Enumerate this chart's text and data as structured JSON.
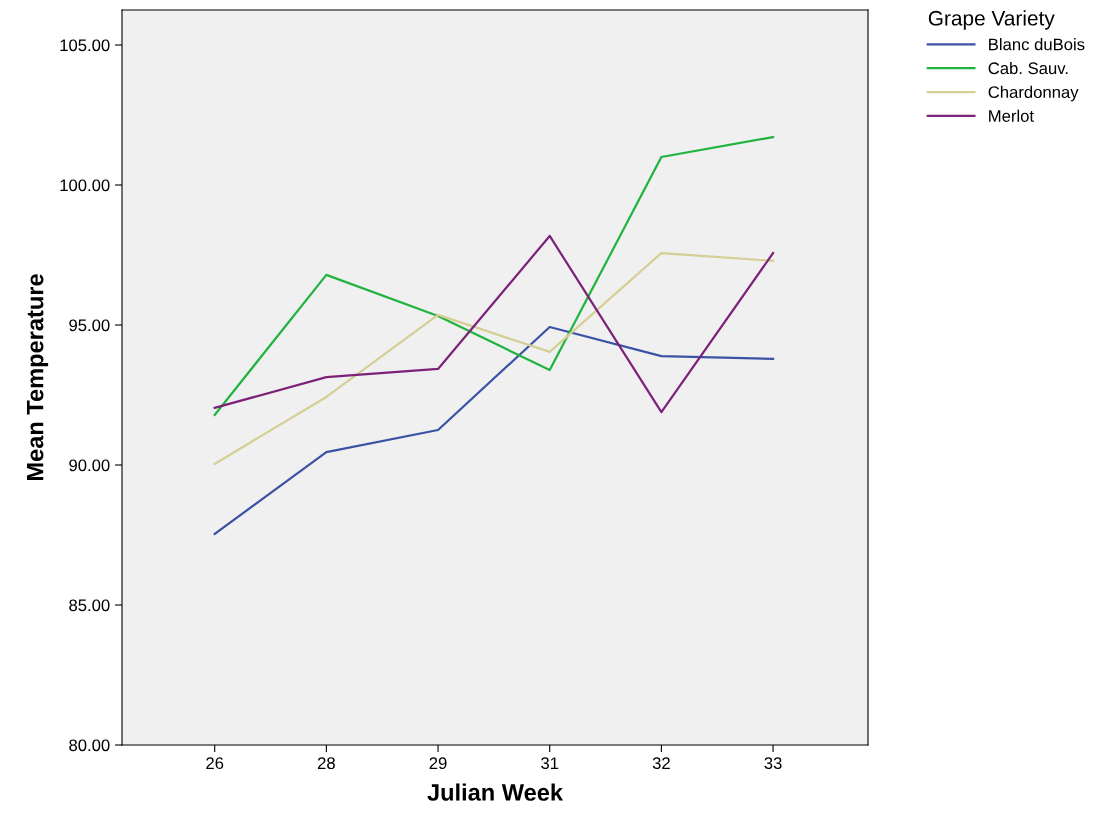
{
  "chart_data": {
    "type": "line",
    "xlabel": "Julian Week",
    "ylabel": "Mean Temperature",
    "legend_title": "Grape Variety",
    "categories": [
      "26",
      "28",
      "29",
      "31",
      "32",
      "33"
    ],
    "series": [
      {
        "name": "Blanc duBois",
        "color": "#3a53a4",
        "values": [
          87.54,
          90.46,
          91.25,
          94.93,
          93.89,
          93.79
        ]
      },
      {
        "name": "Cab. Sauv.",
        "color": "#21b33f",
        "values": [
          91.79,
          96.79,
          95.32,
          93.39,
          101.0,
          101.71
        ]
      },
      {
        "name": "Chardonnay",
        "color": "#d5cf95",
        "values": [
          90.04,
          92.43,
          95.36,
          94.04,
          97.57,
          97.29
        ]
      },
      {
        "name": "Merlot",
        "color": "#7c2278",
        "values": [
          92.04,
          93.14,
          93.43,
          98.18,
          91.89,
          97.57
        ]
      }
    ],
    "ylim": [
      80,
      106.25
    ],
    "yticks": [
      {
        "value": 80,
        "label": "80.00"
      },
      {
        "value": 85,
        "label": "85.00"
      },
      {
        "value": 90,
        "label": "90.00"
      },
      {
        "value": 95,
        "label": "95.00"
      },
      {
        "value": 100,
        "label": "100.00"
      },
      {
        "value": 105,
        "label": "105.00"
      }
    ],
    "grid": false,
    "legend": "top right",
    "marker": "none",
    "line_style": "solid"
  }
}
